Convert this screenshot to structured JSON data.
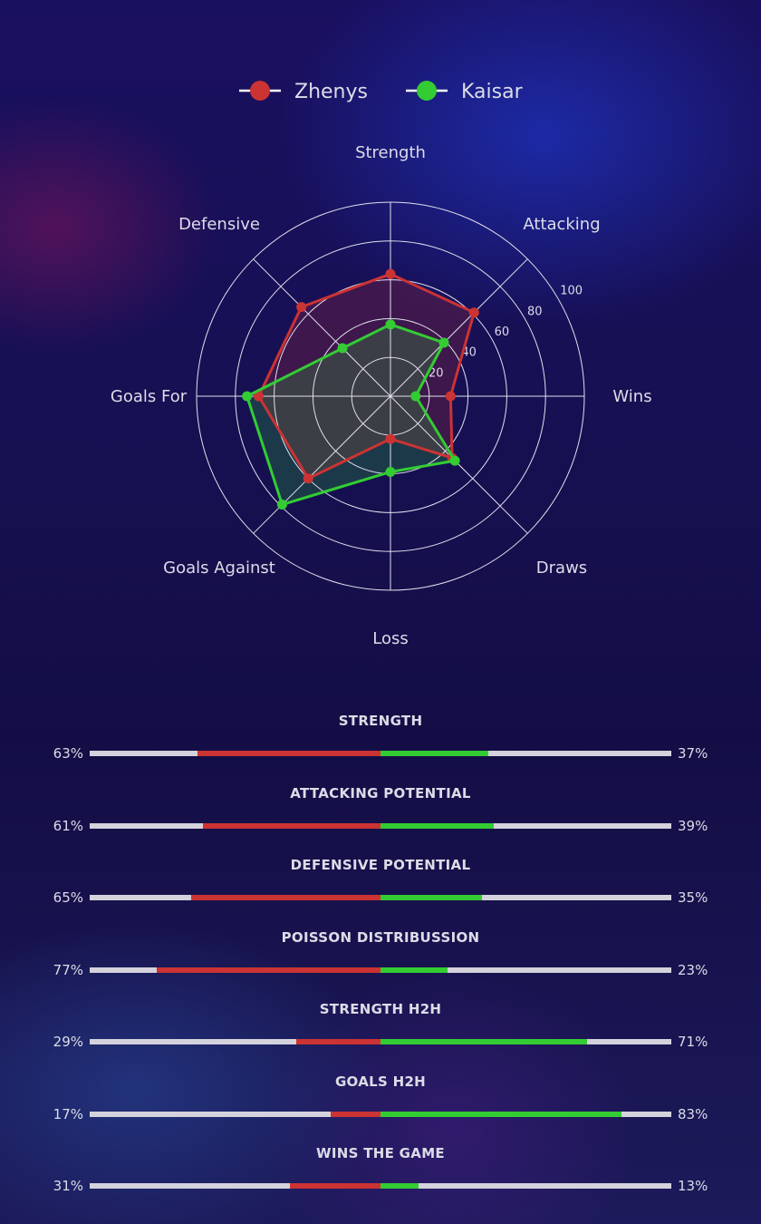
{
  "chart_data": [
    {
      "type": "radar",
      "axes": [
        "Strength",
        "Attacking",
        "Wins",
        "Draws",
        "Loss",
        "Goals Against",
        "Goals For",
        "Defensive"
      ],
      "radial_ticks": [
        20,
        40,
        60,
        80,
        100
      ],
      "range": [
        0,
        100
      ],
      "legend_position": "top",
      "series": [
        {
          "name": "Zhenys",
          "color": "#cc3333",
          "values": [
            63,
            61,
            31,
            45,
            22,
            60,
            68,
            65
          ]
        },
        {
          "name": "Kaisar",
          "color": "#33cc33",
          "values": [
            37,
            39,
            13,
            47,
            39,
            79,
            74,
            35
          ]
        }
      ]
    },
    {
      "type": "bar",
      "orientation": "diverging-horizontal",
      "metrics": [
        {
          "title": "STRENGTH",
          "left": 63,
          "right": 37,
          "left_label": "63%",
          "right_label": "37%"
        },
        {
          "title": "ATTACKING POTENTIAL",
          "left": 61,
          "right": 39,
          "left_label": "61%",
          "right_label": "39%"
        },
        {
          "title": "DEFENSIVE POTENTIAL",
          "left": 65,
          "right": 35,
          "left_label": "65%",
          "right_label": "35%"
        },
        {
          "title": "POISSON DISTRIBUSSION",
          "left": 77,
          "right": 23,
          "left_label": "77%",
          "right_label": "23%"
        },
        {
          "title": "STRENGTH H2H",
          "left": 29,
          "right": 71,
          "left_label": "29%",
          "right_label": "71%"
        },
        {
          "title": "GOALS H2H",
          "left": 17,
          "right": 83,
          "left_label": "17%",
          "right_label": "83%"
        },
        {
          "title": "WINS THE GAME",
          "left": 31,
          "right": 13,
          "left_label": "31%",
          "right_label": "13%"
        }
      ],
      "left_color": "#cc3333",
      "right_color": "#33cc33",
      "track_color": "#d4d2dc"
    }
  ]
}
